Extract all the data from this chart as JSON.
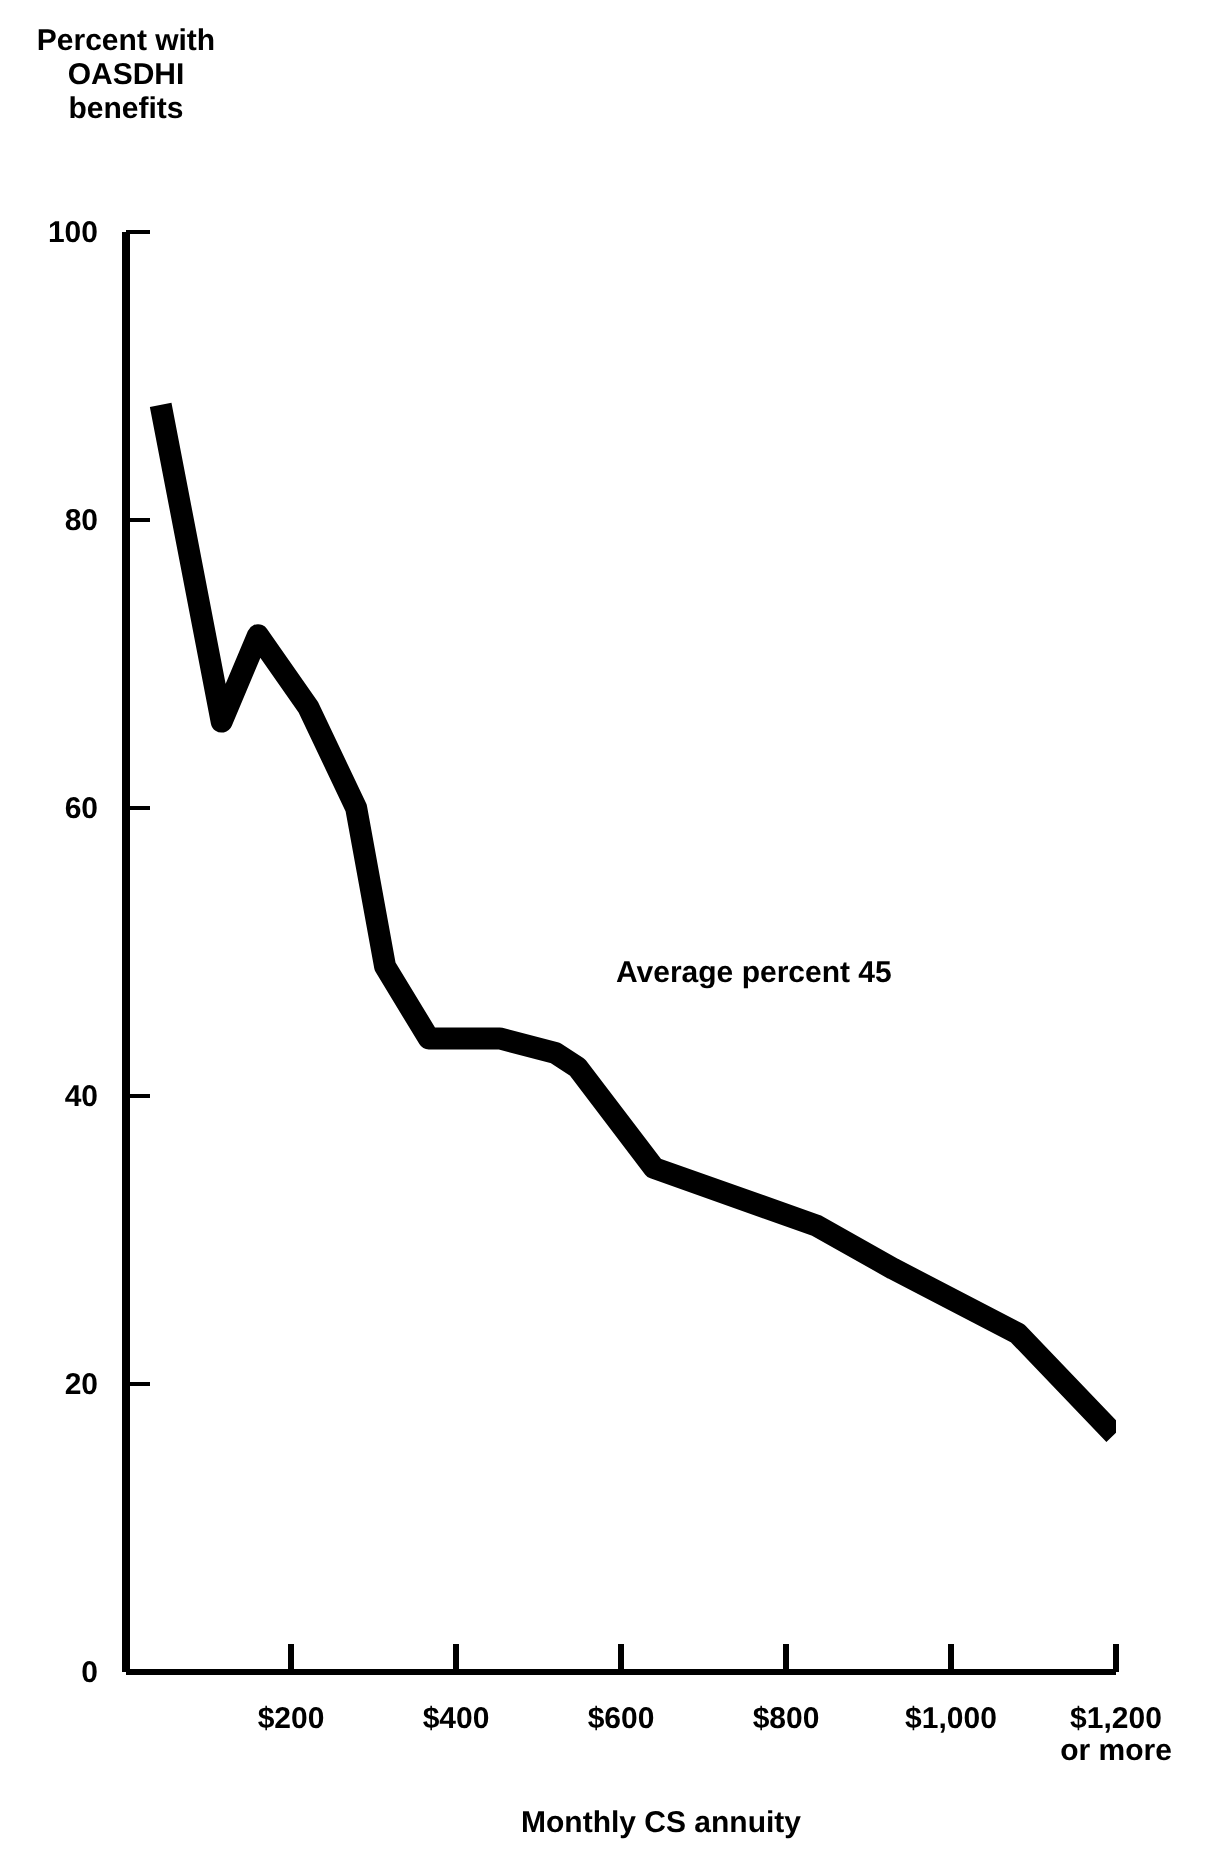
{
  "chart_data": {
    "type": "line",
    "xlabel": "Monthly CS annuity",
    "ylabel": "Percent with OASDHI benefits",
    "annotations": [
      "Average percent  45"
    ],
    "x": [
      42,
      116,
      160,
      221,
      279,
      314,
      367,
      453,
      520,
      547,
      640,
      837,
      930,
      1081,
      1198
    ],
    "series": [
      {
        "color": "#000000",
        "values": [
          88,
          66,
          72,
          67,
          60,
          49,
          44,
          44,
          43,
          42,
          35,
          31,
          28,
          23.5,
          16.5
        ]
      }
    ],
    "xlim": [
      0,
      1200
    ],
    "xticks": [
      {
        "value": 200,
        "label": "$200"
      },
      {
        "value": 400,
        "label": "$400"
      },
      {
        "value": 600,
        "label": "$600"
      },
      {
        "value": 800,
        "label": "$800"
      },
      {
        "value": 1000,
        "label": "$1,000"
      },
      {
        "value": 1200,
        "label": "$1,200\nor more"
      }
    ],
    "ylim": [
      0,
      100
    ],
    "yticks": [
      0,
      20,
      40,
      60,
      80,
      100
    ],
    "grid": false,
    "marker": "none",
    "line_style": "solid"
  }
}
